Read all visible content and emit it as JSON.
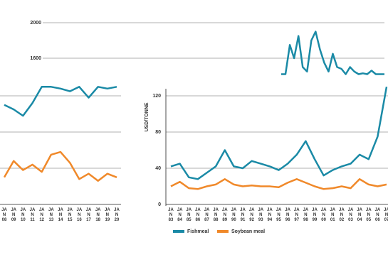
{
  "chart_data": [
    {
      "type": "line",
      "ylim": [
        1400,
        2100
      ],
      "yticks": [
        1600,
        2000
      ],
      "grid": true,
      "series": [
        {
          "name": "Fishmeal",
          "color": "#1a8aa6",
          "values": [
            1420,
            1420,
            1750,
            1600,
            1850,
            1500,
            1450,
            1800,
            1900,
            1700,
            1550,
            1450,
            1650,
            1500,
            1480,
            1420,
            1500,
            1450,
            1420,
            1430,
            1420,
            1460,
            1420,
            1420,
            1420
          ]
        }
      ]
    },
    {
      "type": "line",
      "ylim": [
        0,
        120
      ],
      "yticks": [
        0,
        40,
        80,
        120
      ],
      "grid": true,
      "tick_labels": false,
      "categories": [
        "JAN 08",
        "JAN 09",
        "JAN 10",
        "JAN 11",
        "JAN 12",
        "JAN 13",
        "JAN 14",
        "JAN 15",
        "JAN 16",
        "JAN 17",
        "JAN 18",
        "JAN 19",
        "JAN 20"
      ],
      "series": [
        {
          "name": "Fishmeal",
          "color": "#1a8aa6",
          "values": [
            110,
            105,
            98,
            112,
            130,
            130,
            128,
            125,
            130,
            118,
            130,
            128,
            130
          ]
        },
        {
          "name": "Soybean meal",
          "color": "#f0892a",
          "values": [
            30,
            48,
            38,
            44,
            36,
            55,
            58,
            46,
            28,
            34,
            26,
            34,
            30
          ]
        }
      ]
    },
    {
      "type": "line",
      "y_label": "USD/TONNE",
      "ylim": [
        0,
        120
      ],
      "yticks": [
        0,
        40,
        80,
        120
      ],
      "grid": true,
      "legend": "bottom",
      "categories": [
        "JAN 83",
        "JAN 84",
        "JAN 85",
        "JAN 86",
        "JAN 87",
        "JAN 88",
        "JAN 89",
        "JAN 90",
        "JAN 91",
        "JAN 92",
        "JAN 93",
        "JAN 94",
        "JAN 95",
        "JAN 96",
        "JAN 97",
        "JAN 98",
        "JAN 99",
        "JAN 00",
        "JAN 01",
        "JAN 02",
        "JAN 03",
        "JAN 04",
        "JAN 05",
        "JAN 06",
        "JAN 07"
      ],
      "series": [
        {
          "name": "Fishmeal",
          "color": "#1a8aa6",
          "values": [
            42,
            45,
            30,
            28,
            35,
            42,
            60,
            42,
            40,
            48,
            45,
            42,
            38,
            45,
            55,
            70,
            50,
            32,
            38,
            42,
            45,
            55,
            50,
            75,
            130
          ]
        },
        {
          "name": "Soybean meal",
          "color": "#f0892a",
          "values": [
            20,
            25,
            18,
            17,
            20,
            22,
            28,
            22,
            20,
            21,
            20,
            20,
            19,
            24,
            28,
            24,
            20,
            17,
            18,
            20,
            18,
            28,
            22,
            20,
            22
          ]
        }
      ]
    }
  ]
}
